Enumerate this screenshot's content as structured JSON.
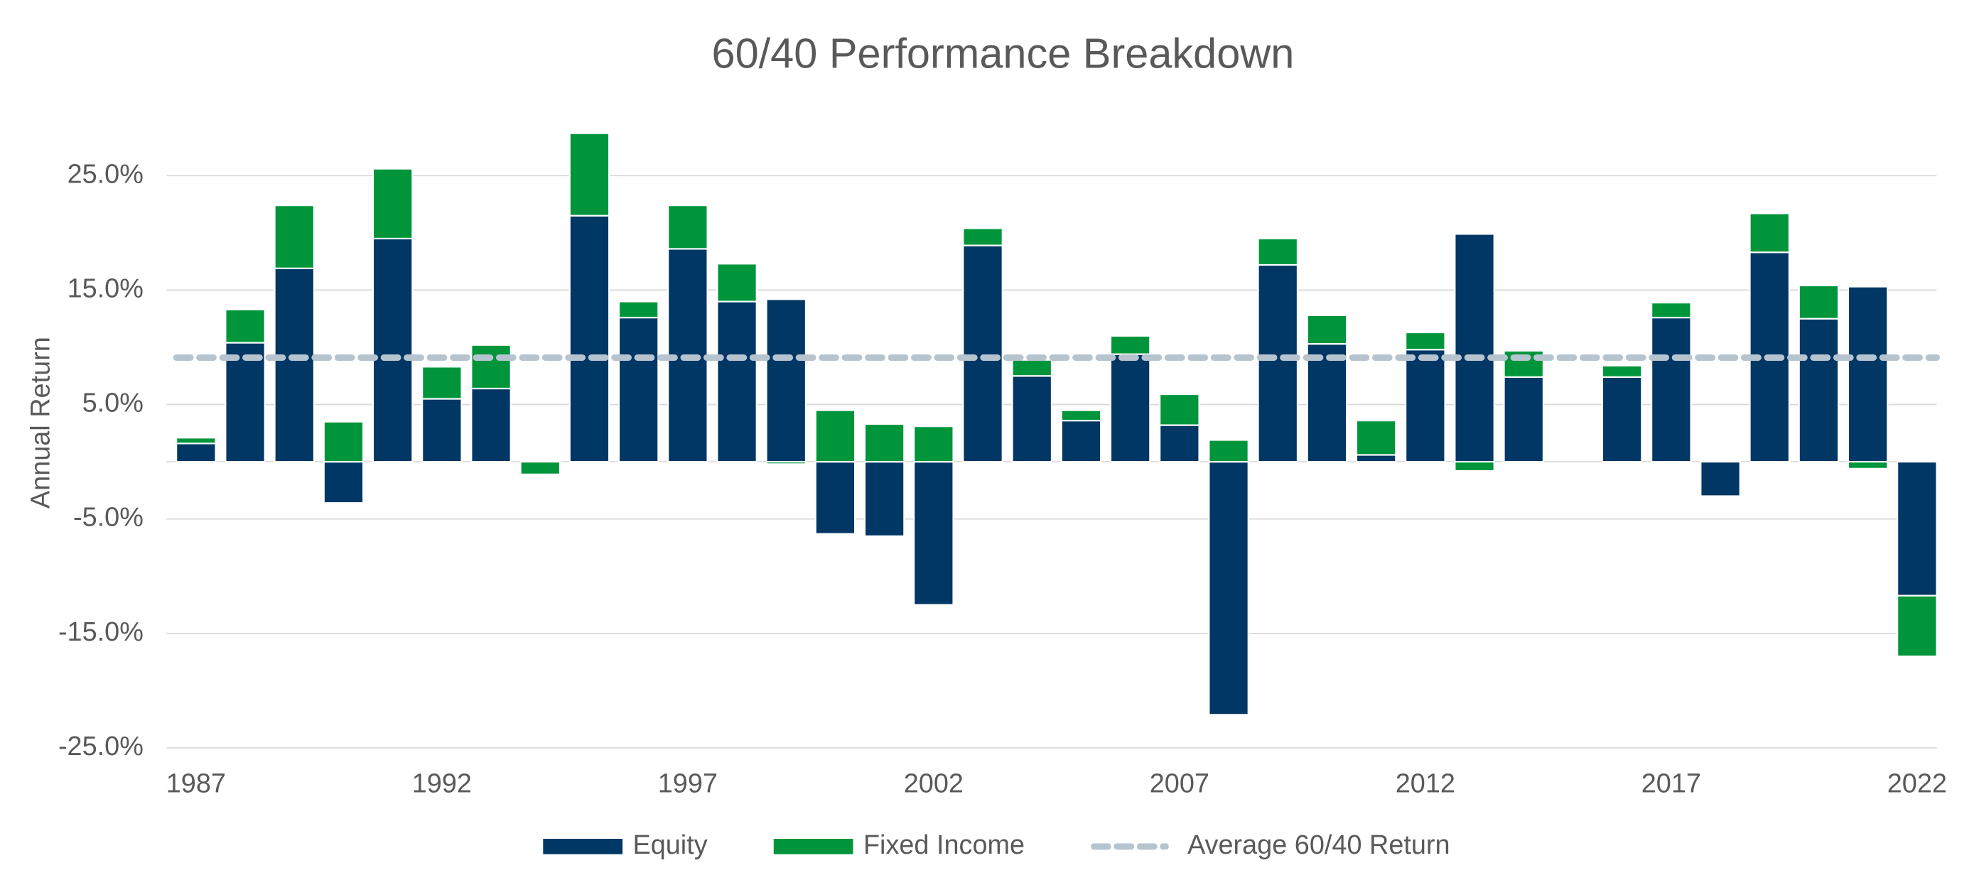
{
  "chart_data": {
    "type": "stacked-bar",
    "title": "60/40 Performance Breakdown",
    "y_label": "Annual Return",
    "x": [
      1987,
      1988,
      1989,
      1990,
      1991,
      1992,
      1993,
      1994,
      1995,
      1996,
      1997,
      1998,
      1999,
      2000,
      2001,
      2002,
      2003,
      2004,
      2005,
      2006,
      2007,
      2008,
      2009,
      2010,
      2011,
      2012,
      2013,
      2014,
      2015,
      2016,
      2017,
      2018,
      2019,
      2020,
      2021,
      2022
    ],
    "series": [
      {
        "name": "Equity",
        "color": "#003764",
        "values": [
          1.6,
          10.4,
          16.9,
          -3.6,
          19.5,
          5.5,
          6.4,
          0,
          21.5,
          12.6,
          18.6,
          14.0,
          14.2,
          -6.3,
          -6.5,
          -12.5,
          18.9,
          7.5,
          3.6,
          9.4,
          3.2,
          -22.1,
          17.2,
          10.3,
          0.6,
          9.8,
          19.9,
          7.4,
          0,
          7.4,
          12.6,
          -3.0,
          18.3,
          12.5,
          15.3,
          -11.7
        ]
      },
      {
        "name": "Fixed Income",
        "color": "#00953b",
        "values": [
          0.5,
          2.9,
          5.5,
          3.5,
          6.1,
          2.8,
          3.8,
          -1.1,
          7.2,
          1.4,
          3.8,
          3.3,
          -0.2,
          4.5,
          3.3,
          3.1,
          1.5,
          1.4,
          0.9,
          1.6,
          2.7,
          1.9,
          2.3,
          2.5,
          3.0,
          1.5,
          -0.8,
          2.3,
          0,
          1.0,
          1.3,
          0,
          3.4,
          2.9,
          -0.6,
          -5.3
        ]
      }
    ],
    "reference_line": {
      "name": "Average 60/40 Return",
      "value": 9.1,
      "color": "#b6c4d0"
    },
    "xlim": [
      1986.4,
      2022.4
    ],
    "xticks": [
      1987,
      1992,
      1997,
      2002,
      2007,
      2012,
      2017,
      2022
    ],
    "ylim": [
      -25,
      30
    ],
    "yticks": [
      {
        "value": 25,
        "label": "25.0%"
      },
      {
        "value": 15,
        "label": "15.0%"
      },
      {
        "value": 5,
        "label": "5.0%"
      },
      {
        "value": -5,
        "label": "-5.0%"
      },
      {
        "value": -15,
        "label": "-15.0%"
      },
      {
        "value": -25,
        "label": "-25.0%"
      }
    ],
    "grid": true,
    "legend": "bottom"
  }
}
